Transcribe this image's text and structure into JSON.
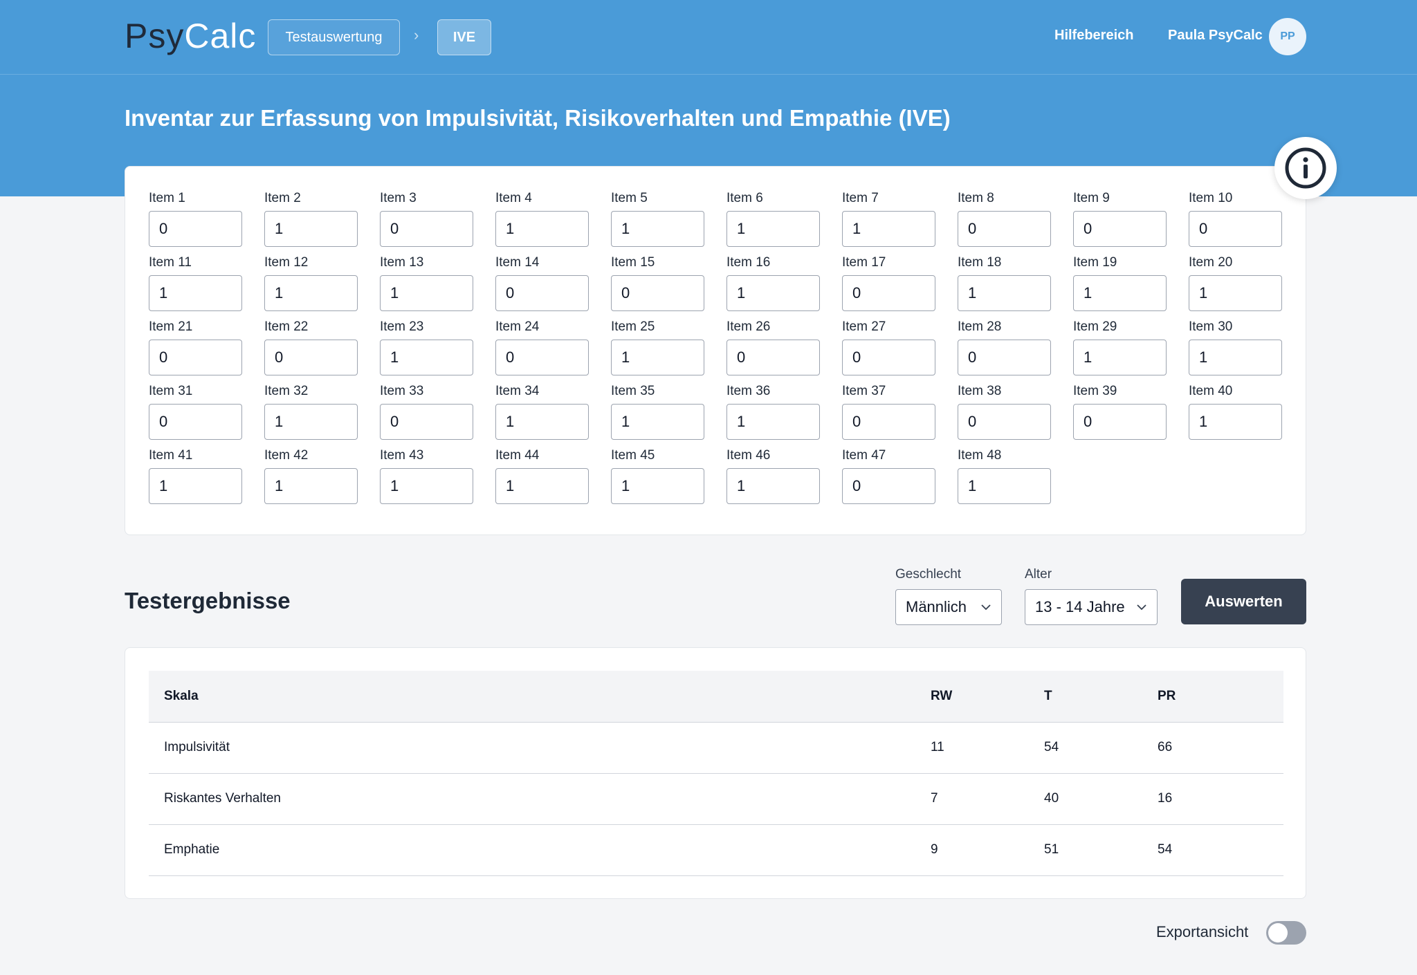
{
  "header": {
    "logo_part1": "Psy",
    "logo_part2": "Calc",
    "breadcrumb": [
      "Testauswertung",
      "IVE"
    ],
    "breadcrumb_separator": "›",
    "help_link": "Hilfebereich",
    "user_name": "Paula PsyCalc",
    "user_initials": "PP"
  },
  "page_title": "Inventar zur Erfassung von Impulsivität, Risikoverhalten und Empathie (IVE)",
  "info_button_icon": "info-icon",
  "items": [
    {
      "label": "Item 1",
      "value": "0"
    },
    {
      "label": "Item 2",
      "value": "1"
    },
    {
      "label": "Item 3",
      "value": "0"
    },
    {
      "label": "Item 4",
      "value": "1"
    },
    {
      "label": "Item 5",
      "value": "1"
    },
    {
      "label": "Item 6",
      "value": "1"
    },
    {
      "label": "Item 7",
      "value": "1"
    },
    {
      "label": "Item 8",
      "value": "0"
    },
    {
      "label": "Item 9",
      "value": "0"
    },
    {
      "label": "Item 10",
      "value": "0"
    },
    {
      "label": "Item 11",
      "value": "1"
    },
    {
      "label": "Item 12",
      "value": "1"
    },
    {
      "label": "Item 13",
      "value": "1"
    },
    {
      "label": "Item 14",
      "value": "0"
    },
    {
      "label": "Item 15",
      "value": "0"
    },
    {
      "label": "Item 16",
      "value": "1"
    },
    {
      "label": "Item 17",
      "value": "0"
    },
    {
      "label": "Item 18",
      "value": "1"
    },
    {
      "label": "Item 19",
      "value": "1"
    },
    {
      "label": "Item 20",
      "value": "1"
    },
    {
      "label": "Item 21",
      "value": "0"
    },
    {
      "label": "Item 22",
      "value": "0"
    },
    {
      "label": "Item 23",
      "value": "1"
    },
    {
      "label": "Item 24",
      "value": "0"
    },
    {
      "label": "Item 25",
      "value": "1"
    },
    {
      "label": "Item 26",
      "value": "0"
    },
    {
      "label": "Item 27",
      "value": "0"
    },
    {
      "label": "Item 28",
      "value": "0"
    },
    {
      "label": "Item 29",
      "value": "1"
    },
    {
      "label": "Item 30",
      "value": "1"
    },
    {
      "label": "Item 31",
      "value": "0"
    },
    {
      "label": "Item 32",
      "value": "1"
    },
    {
      "label": "Item 33",
      "value": "0"
    },
    {
      "label": "Item 34",
      "value": "1"
    },
    {
      "label": "Item 35",
      "value": "1"
    },
    {
      "label": "Item 36",
      "value": "1"
    },
    {
      "label": "Item 37",
      "value": "0"
    },
    {
      "label": "Item 38",
      "value": "0"
    },
    {
      "label": "Item 39",
      "value": "0"
    },
    {
      "label": "Item 40",
      "value": "1"
    },
    {
      "label": "Item 41",
      "value": "1"
    },
    {
      "label": "Item 42",
      "value": "1"
    },
    {
      "label": "Item 43",
      "value": "1"
    },
    {
      "label": "Item 44",
      "value": "1"
    },
    {
      "label": "Item 45",
      "value": "1"
    },
    {
      "label": "Item 46",
      "value": "1"
    },
    {
      "label": "Item 47",
      "value": "0"
    },
    {
      "label": "Item 48",
      "value": "1"
    }
  ],
  "results": {
    "title": "Testergebnisse",
    "gender_label": "Geschlecht",
    "gender_value": "Männlich",
    "age_label": "Alter",
    "age_value": "13 - 14 Jahre",
    "evaluate_button": "Auswerten",
    "columns": [
      "Skala",
      "RW",
      "T",
      "PR"
    ],
    "rows": [
      [
        "Impulsivität",
        "11",
        "54",
        "66"
      ],
      [
        "Riskantes Verhalten",
        "7",
        "40",
        "16"
      ],
      [
        "Emphatie",
        "9",
        "51",
        "54"
      ]
    ],
    "export_toggle_label": "Exportansicht",
    "export_toggle_on": false
  },
  "colors": {
    "header_blue": "#4a9bd8",
    "dark_button": "#374151"
  }
}
